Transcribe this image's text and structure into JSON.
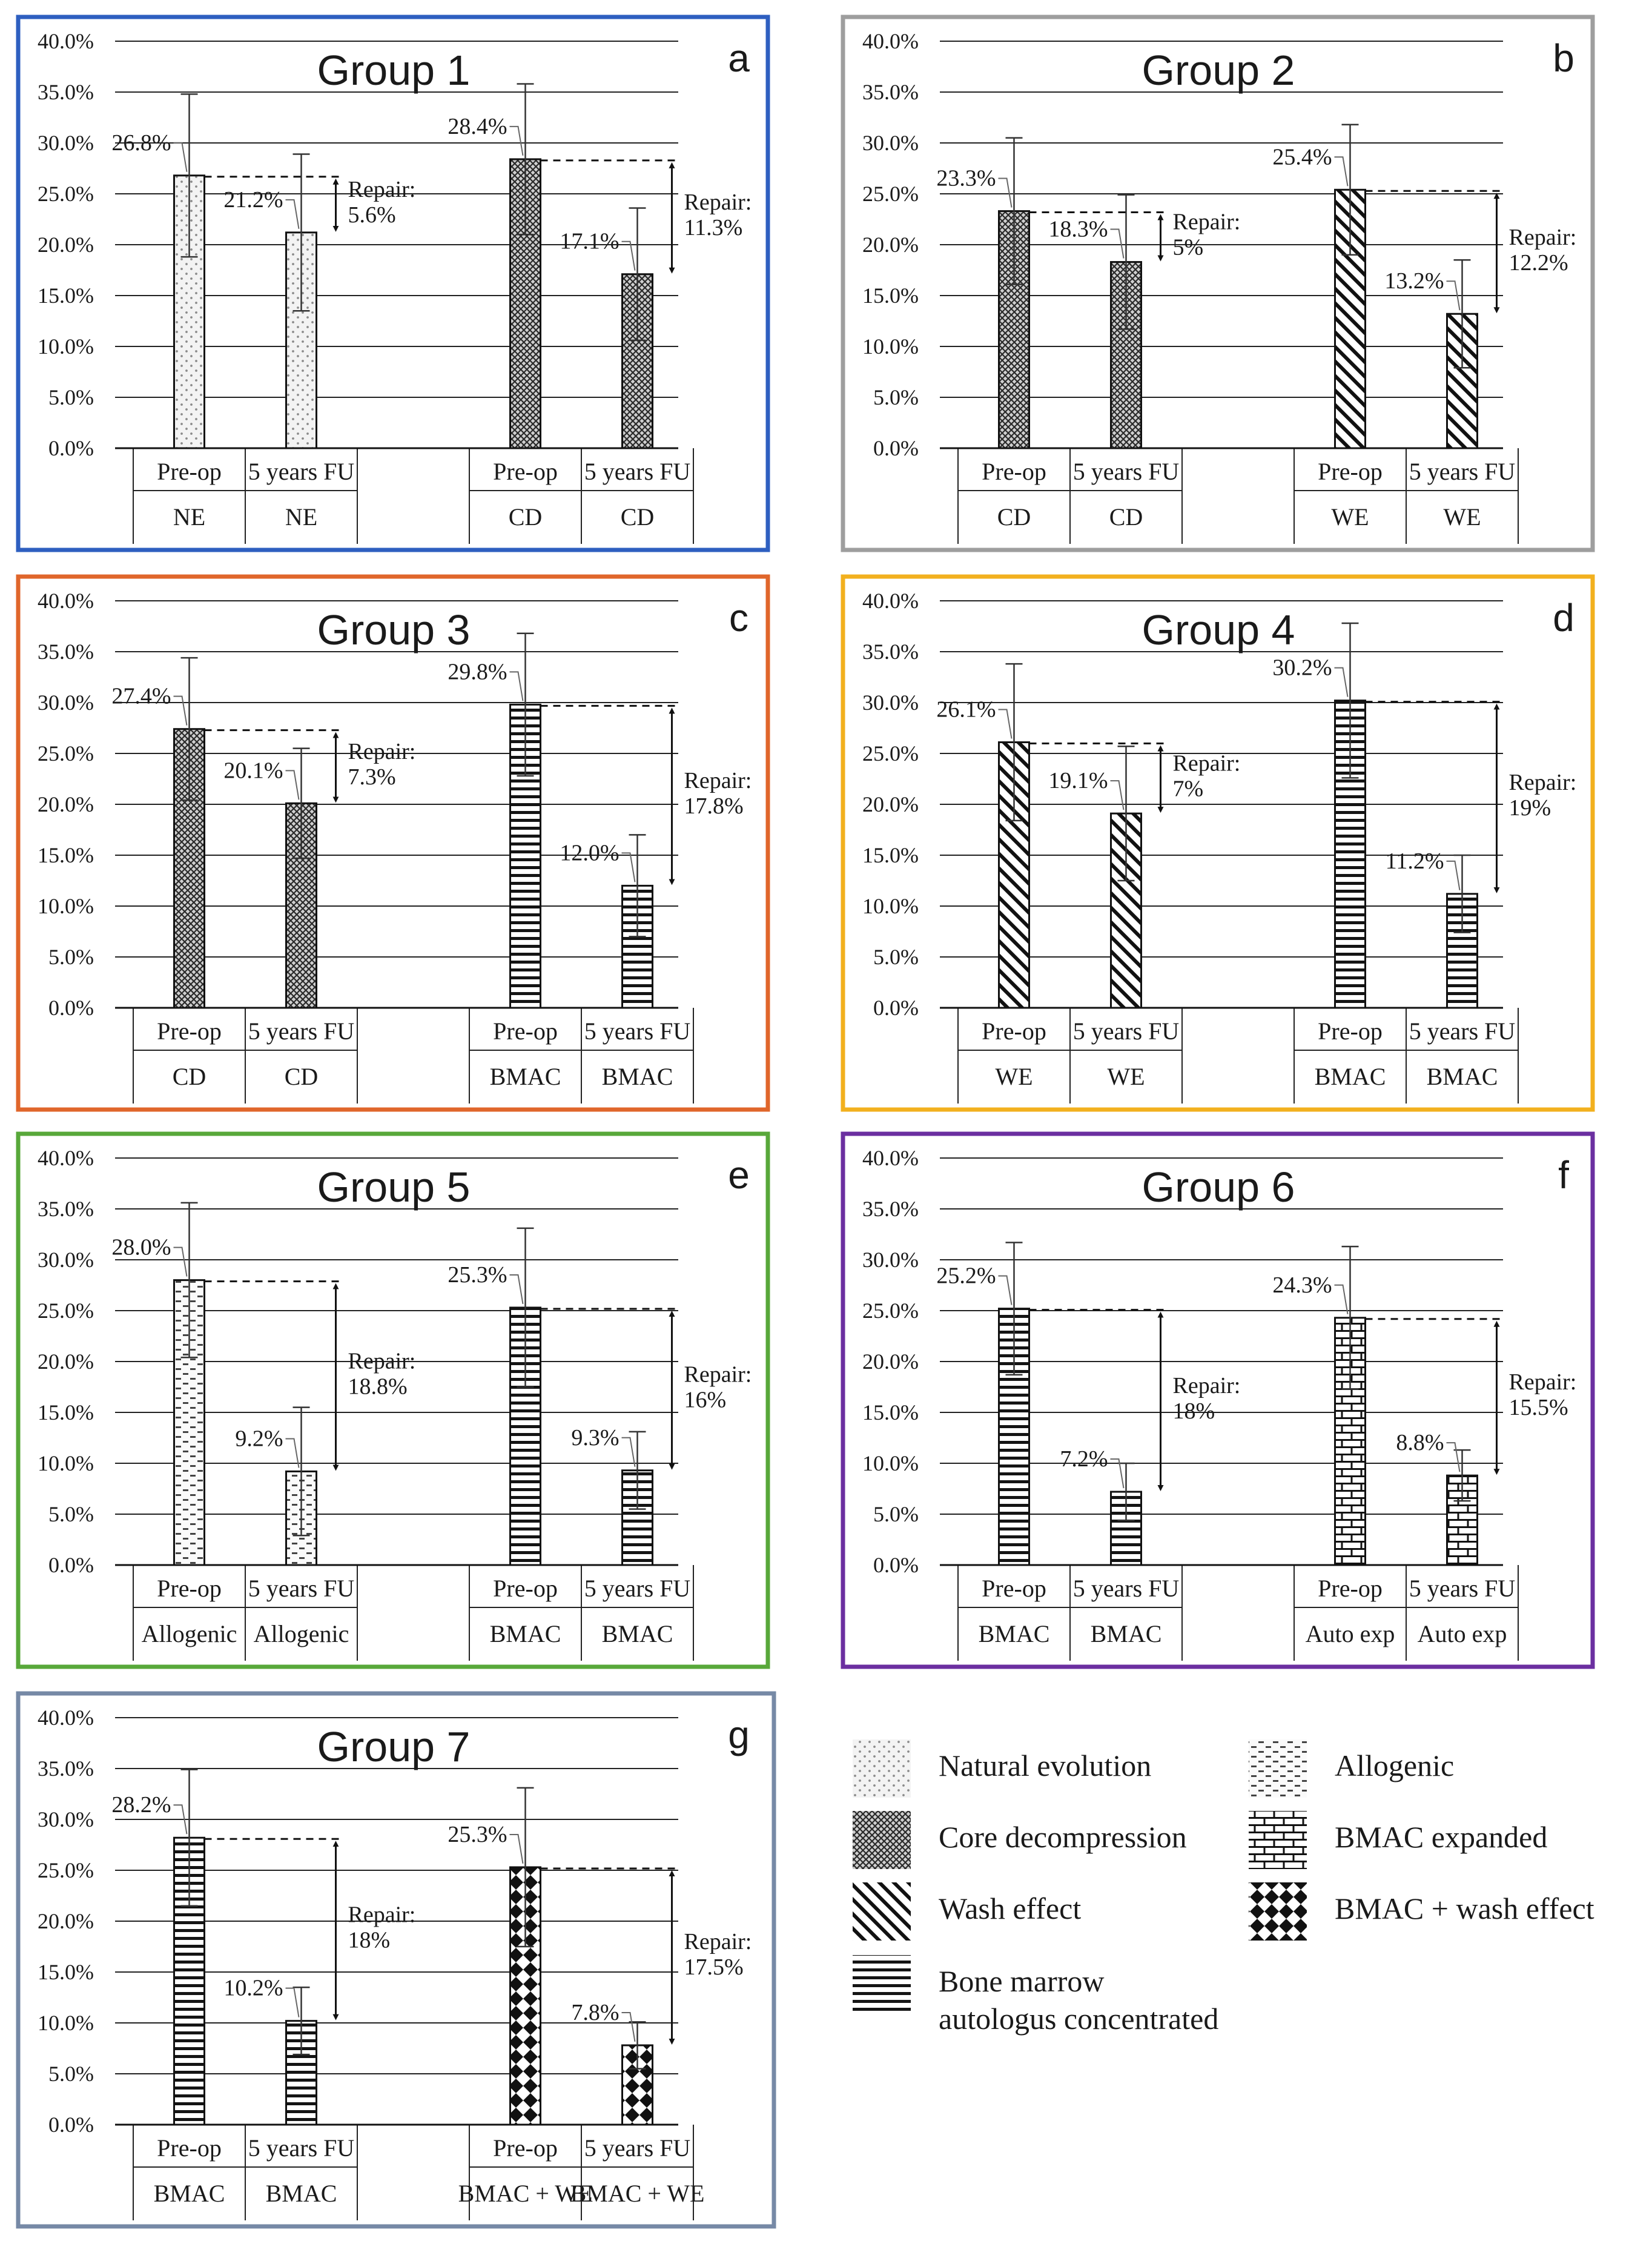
{
  "chart_data": [
    {
      "type": "bar",
      "panel": "a",
      "title": "Group 1",
      "border_color": "#2e5fc0",
      "ylim": [
        0,
        40
      ],
      "yticks": [
        "0.0%",
        "5.0%",
        "10.0%",
        "15.0%",
        "20.0%",
        "25.0%",
        "30.0%",
        "35.0%",
        "40.0%"
      ],
      "pairs": [
        {
          "bars": [
            {
              "category": "Pre-op",
              "treatment": "NE",
              "value": 26.8,
              "label": "26.8%",
              "err": 8.0,
              "pattern": "dots"
            },
            {
              "category": "5 years FU",
              "treatment": "NE",
              "value": 21.2,
              "label": "21.2%",
              "err": 7.7,
              "pattern": "dots"
            }
          ],
          "repair": [
            "Repair:",
            "5.6%"
          ]
        },
        {
          "bars": [
            {
              "category": "Pre-op",
              "treatment": "CD",
              "value": 28.4,
              "label": "28.4%",
              "err": 7.4,
              "pattern": "cross"
            },
            {
              "category": "5 years FU",
              "treatment": "CD",
              "value": 17.1,
              "label": "17.1%",
              "err": 6.5,
              "pattern": "cross"
            }
          ],
          "repair": [
            "Repair:",
            "11.3%"
          ]
        }
      ]
    },
    {
      "type": "bar",
      "panel": "b",
      "title": "Group 2",
      "border_color": "#9e9e9e",
      "ylim": [
        0,
        40
      ],
      "yticks": [
        "0.0%",
        "5.0%",
        "10.0%",
        "15.0%",
        "20.0%",
        "25.0%",
        "30.0%",
        "35.0%",
        "40.0%"
      ],
      "pairs": [
        {
          "bars": [
            {
              "category": "Pre-op",
              "treatment": "CD",
              "value": 23.3,
              "label": "23.3%",
              "err": 7.2,
              "pattern": "cross"
            },
            {
              "category": "5 years FU",
              "treatment": "CD",
              "value": 18.3,
              "label": "18.3%",
              "err": 6.6,
              "pattern": "cross"
            }
          ],
          "repair": [
            "Repair:",
            "5%"
          ]
        },
        {
          "bars": [
            {
              "category": "Pre-op",
              "treatment": "WE",
              "value": 25.4,
              "label": "25.4%",
              "err": 6.4,
              "pattern": "diag"
            },
            {
              "category": "5 years FU",
              "treatment": "WE",
              "value": 13.2,
              "label": "13.2%",
              "err": 5.3,
              "pattern": "diag"
            }
          ],
          "repair": [
            "Repair:",
            "12.2%"
          ]
        }
      ]
    },
    {
      "type": "bar",
      "panel": "c",
      "title": "Group 3",
      "border_color": "#e0662b",
      "ylim": [
        0,
        40
      ],
      "yticks": [
        "0.0%",
        "5.0%",
        "10.0%",
        "15.0%",
        "20.0%",
        "25.0%",
        "30.0%",
        "35.0%",
        "40.0%"
      ],
      "pairs": [
        {
          "bars": [
            {
              "category": "Pre-op",
              "treatment": "CD",
              "value": 27.4,
              "label": "27.4%",
              "err": 7.0,
              "pattern": "cross"
            },
            {
              "category": "5 years FU",
              "treatment": "CD",
              "value": 20.1,
              "label": "20.1%",
              "err": 5.4,
              "pattern": "cross"
            }
          ],
          "repair": [
            "Repair:",
            "7.3%"
          ]
        },
        {
          "bars": [
            {
              "category": "Pre-op",
              "treatment": "BMAC",
              "value": 29.8,
              "label": "29.8%",
              "err": 7.0,
              "pattern": "hlines"
            },
            {
              "category": "5 years FU",
              "treatment": "BMAC",
              "value": 12.0,
              "label": "12.0%",
              "err": 5.0,
              "pattern": "hlines"
            }
          ],
          "repair": [
            "Repair:",
            "17.8%"
          ]
        }
      ]
    },
    {
      "type": "bar",
      "panel": "d",
      "title": "Group 4",
      "border_color": "#f2b01e",
      "ylim": [
        0,
        40
      ],
      "yticks": [
        "0.0%",
        "5.0%",
        "10.0%",
        "15.0%",
        "20.0%",
        "25.0%",
        "30.0%",
        "35.0%",
        "40.0%"
      ],
      "pairs": [
        {
          "bars": [
            {
              "category": "Pre-op",
              "treatment": "WE",
              "value": 26.1,
              "label": "26.1%",
              "err": 7.7,
              "pattern": "diag"
            },
            {
              "category": "5 years FU",
              "treatment": "WE",
              "value": 19.1,
              "label": "19.1%",
              "err": 6.6,
              "pattern": "diag"
            }
          ],
          "repair": [
            "Repair:",
            "7%"
          ]
        },
        {
          "bars": [
            {
              "category": "Pre-op",
              "treatment": "BMAC",
              "value": 30.2,
              "label": "30.2%",
              "err": 7.6,
              "pattern": "hlines"
            },
            {
              "category": "5 years FU",
              "treatment": "BMAC",
              "value": 11.2,
              "label": "11.2%",
              "err": 3.8,
              "pattern": "hlines"
            }
          ],
          "repair": [
            "Repair:",
            "19%"
          ]
        }
      ]
    },
    {
      "type": "bar",
      "panel": "e",
      "title": "Group 5",
      "border_color": "#58a83a",
      "ylim": [
        0,
        40
      ],
      "yticks": [
        "0.0%",
        "5.0%",
        "10.0%",
        "15.0%",
        "20.0%",
        "25.0%",
        "30.0%",
        "35.0%",
        "40.0%"
      ],
      "pairs": [
        {
          "bars": [
            {
              "category": "Pre-op",
              "treatment": "Allogenic",
              "value": 28.0,
              "label": "28.0%",
              "err": 7.6,
              "pattern": "dash"
            },
            {
              "category": "5 years FU",
              "treatment": "Allogenic",
              "value": 9.2,
              "label": "9.2%",
              "err": 6.3,
              "pattern": "dash"
            }
          ],
          "repair": [
            "Repair:",
            "18.8%"
          ]
        },
        {
          "bars": [
            {
              "category": "Pre-op",
              "treatment": "BMAC",
              "value": 25.3,
              "label": "25.3%",
              "err": 7.8,
              "pattern": "hlines"
            },
            {
              "category": "5 years FU",
              "treatment": "BMAC",
              "value": 9.3,
              "label": "9.3%",
              "err": 3.8,
              "pattern": "hlines"
            }
          ],
          "repair": [
            "Repair:",
            "16%"
          ]
        }
      ]
    },
    {
      "type": "bar",
      "panel": "f",
      "title": "Group 6",
      "border_color": "#6b2fa0",
      "ylim": [
        0,
        40
      ],
      "yticks": [
        "0.0%",
        "5.0%",
        "10.0%",
        "15.0%",
        "20.0%",
        "25.0%",
        "30.0%",
        "35.0%",
        "40.0%"
      ],
      "pairs": [
        {
          "bars": [
            {
              "category": "Pre-op",
              "treatment": "BMAC",
              "value": 25.2,
              "label": "25.2%",
              "err": 6.5,
              "pattern": "hlines"
            },
            {
              "category": "5 years FU",
              "treatment": "BMAC",
              "value": 7.2,
              "label": "7.2%",
              "err": 2.8,
              "pattern": "hlines"
            }
          ],
          "repair": [
            "Repair:",
            "18%"
          ]
        },
        {
          "bars": [
            {
              "category": "Pre-op",
              "treatment": "Auto exp",
              "value": 24.3,
              "label": "24.3%",
              "err": 7.0,
              "pattern": "brick"
            },
            {
              "category": "5 years FU",
              "treatment": "Auto exp",
              "value": 8.8,
              "label": "8.8%",
              "err": 2.5,
              "pattern": "brick"
            }
          ],
          "repair": [
            "Repair:",
            "15.5%"
          ]
        }
      ]
    },
    {
      "type": "bar",
      "panel": "g",
      "title": "Group 7",
      "border_color": "#7689a6",
      "ylim": [
        0,
        40
      ],
      "yticks": [
        "0.0%",
        "5.0%",
        "10.0%",
        "15.0%",
        "20.0%",
        "25.0%",
        "30.0%",
        "35.0%",
        "40.0%"
      ],
      "pairs": [
        {
          "bars": [
            {
              "category": "Pre-op",
              "treatment": "BMAC",
              "value": 28.2,
              "label": "28.2%",
              "err": 6.7,
              "pattern": "hlines"
            },
            {
              "category": "5 years FU",
              "treatment": "BMAC",
              "value": 10.2,
              "label": "10.2%",
              "err": 3.3,
              "pattern": "hlines"
            }
          ],
          "repair": [
            "Repair:",
            "18%"
          ]
        },
        {
          "bars": [
            {
              "category": "Pre-op",
              "treatment": "BMAC + WE",
              "value": 25.3,
              "label": "25.3%",
              "err": 7.8,
              "pattern": "diamond"
            },
            {
              "category": "5 years FU",
              "treatment": "BMAC + WE",
              "value": 7.8,
              "label": "7.8%",
              "err": 2.3,
              "pattern": "diamond"
            }
          ],
          "repair": [
            "Repair:",
            "17.5%"
          ]
        }
      ]
    }
  ],
  "legend": [
    {
      "pattern": "dots",
      "lines": [
        "Natural evolution"
      ]
    },
    {
      "pattern": "cross",
      "lines": [
        "Core decompression"
      ]
    },
    {
      "pattern": "diag",
      "lines": [
        "Wash effect"
      ]
    },
    {
      "pattern": "hlines",
      "lines": [
        "Bone marrow",
        "autologus concentrated"
      ]
    },
    {
      "pattern": "dash",
      "lines": [
        "Allogenic"
      ]
    },
    {
      "pattern": "brick",
      "lines": [
        "BMAC expanded"
      ]
    },
    {
      "pattern": "diamond",
      "lines": [
        "BMAC + wash effect"
      ]
    }
  ]
}
